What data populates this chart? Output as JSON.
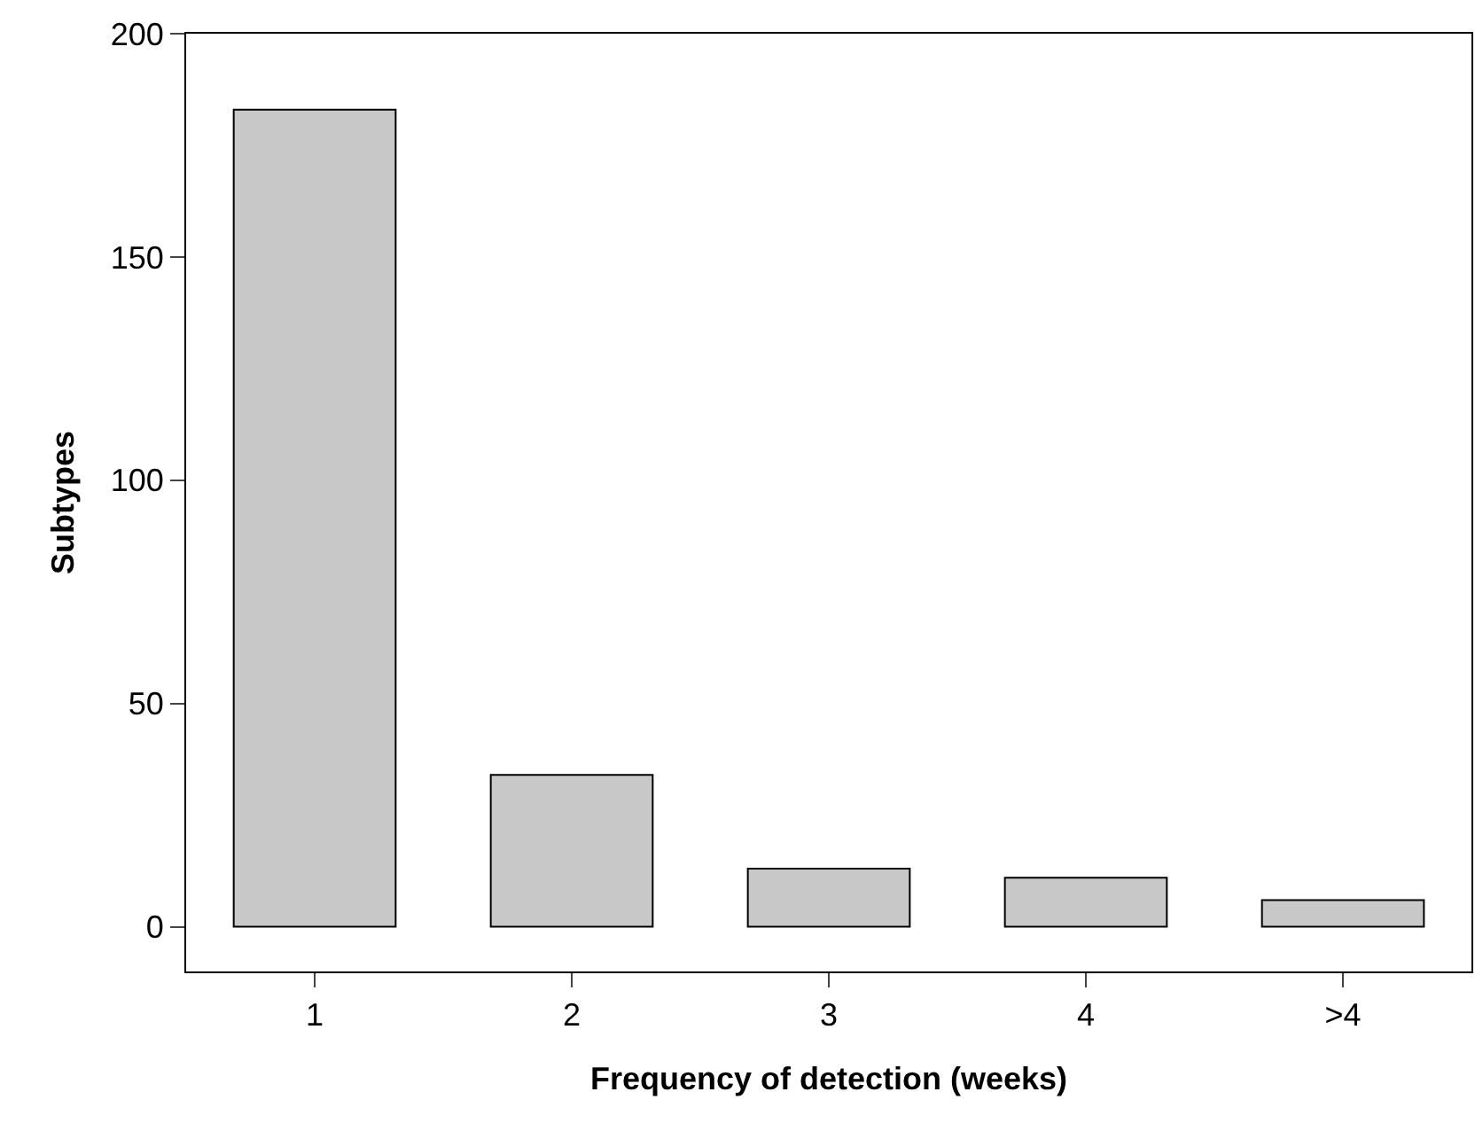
{
  "chart_data": {
    "type": "bar",
    "xlabel": "Frequency of detection (weeks)",
    "ylabel": "Subtypes",
    "categories": [
      "1",
      "2",
      "3",
      "4",
      ">4"
    ],
    "values": [
      183,
      34,
      13,
      11,
      6
    ],
    "color": "#c8c8c8",
    "ylim": [
      -10,
      200
    ],
    "yticks": [
      0,
      50,
      100,
      150,
      200
    ]
  }
}
